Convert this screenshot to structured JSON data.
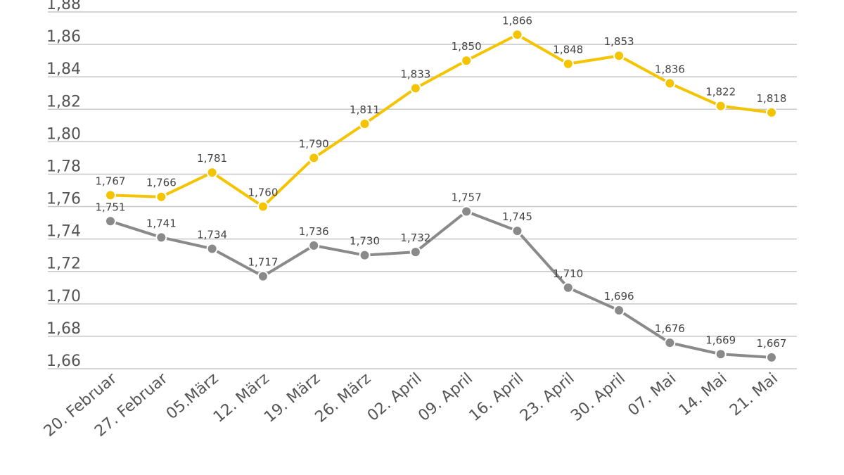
{
  "chart_data": {
    "type": "line",
    "title": "",
    "xlabel": "",
    "ylabel": "",
    "ylim": [
      1.66,
      1.88
    ],
    "yticks": [
      "1,66",
      "1,68",
      "1,70",
      "1,72",
      "1,74",
      "1,76",
      "1,78",
      "1,80",
      "1,82",
      "1,84",
      "1,86",
      "1,88"
    ],
    "grid": true,
    "categories": [
      "20. Februar",
      "27. Februar",
      "05.März",
      "12. März",
      "19. März",
      "26. März",
      "02. April",
      "09. April",
      "16. April",
      "23. April",
      "30. April",
      "07. Mai",
      "14. Mai",
      "21. Mai"
    ],
    "series": [
      {
        "name": "yellow-series",
        "color": "#f5c400",
        "values": [
          1.767,
          1.766,
          1.781,
          1.76,
          1.79,
          1.811,
          1.833,
          1.85,
          1.866,
          1.848,
          1.853,
          1.836,
          1.822,
          1.818
        ],
        "labels": [
          "1,767",
          "1,766",
          "1,781",
          "1,760",
          "1,790",
          "1,811",
          "1,833",
          "1,850",
          "1,866",
          "1,848",
          "1,853",
          "1,836",
          "1,822",
          "1,818"
        ]
      },
      {
        "name": "gray-series",
        "color": "#8a8a8a",
        "values": [
          1.751,
          1.741,
          1.734,
          1.717,
          1.736,
          1.73,
          1.732,
          1.757,
          1.745,
          1.71,
          1.696,
          1.676,
          1.669,
          1.667
        ],
        "labels": [
          "1,751",
          "1,741",
          "1,734",
          "1,717",
          "1,736",
          "1,730",
          "1,732",
          "1,757",
          "1,745",
          "1,710",
          "1,696",
          "1,676",
          "1,669",
          "1,667"
        ]
      }
    ]
  }
}
